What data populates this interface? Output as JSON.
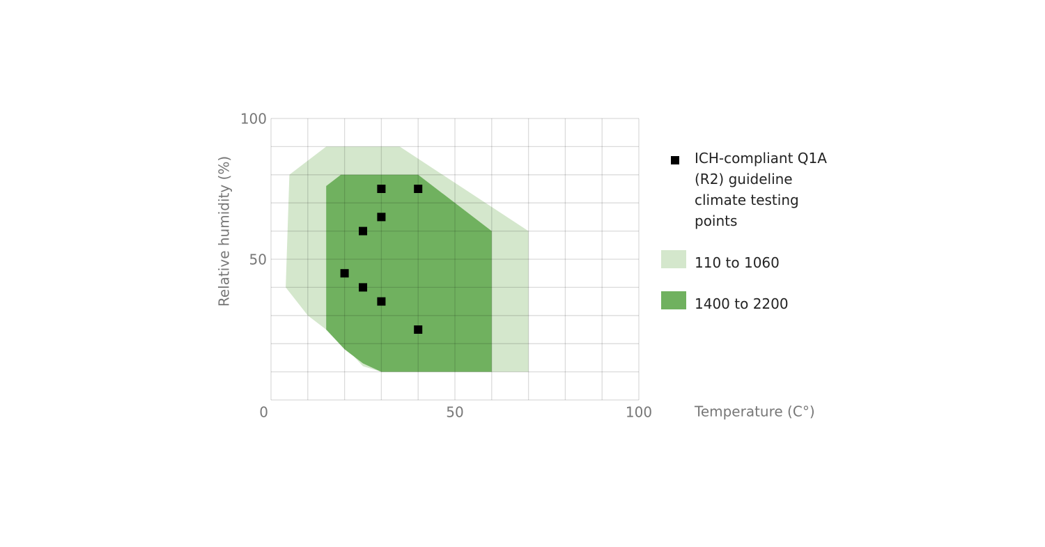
{
  "chart_data": {
    "type": "scatter",
    "x_label": "Temperature (C°)",
    "y_label": "Relative humidity (%)",
    "xlim": [
      0,
      100
    ],
    "ylim": [
      0,
      100
    ],
    "xticks": [
      0,
      50,
      100
    ],
    "yticks": [
      50,
      100
    ],
    "xgrid": [
      0,
      10,
      20,
      30,
      40,
      50,
      60,
      70,
      80,
      90,
      100
    ],
    "ygrid": [
      0,
      10,
      20,
      30,
      40,
      50,
      60,
      70,
      80,
      90,
      100
    ],
    "grid": true,
    "legend": "right",
    "areas": [
      {
        "name": "110 to 1060",
        "color": "#d4e7cc",
        "x": [
          5,
          15,
          35,
          70,
          70,
          30,
          25,
          20,
          15,
          10,
          4
        ],
        "y": [
          80,
          90,
          90,
          60,
          10,
          10,
          12,
          19,
          25,
          30,
          40
        ]
      },
      {
        "name": "1400 to 2200",
        "color": "#70b15f",
        "x": [
          15,
          19,
          40,
          60,
          60,
          30,
          25,
          20,
          15
        ],
        "y": [
          76,
          80,
          80,
          60,
          10,
          10,
          13,
          18,
          25
        ]
      }
    ],
    "series": [
      {
        "name": "ICH-compliant Q1A (R2) guideline climate testing points",
        "color": "#000000",
        "x": [
          30,
          40,
          30,
          25,
          20,
          25,
          30,
          40
        ],
        "values": [
          75,
          75,
          65,
          60,
          45,
          40,
          35,
          25
        ]
      }
    ]
  }
}
